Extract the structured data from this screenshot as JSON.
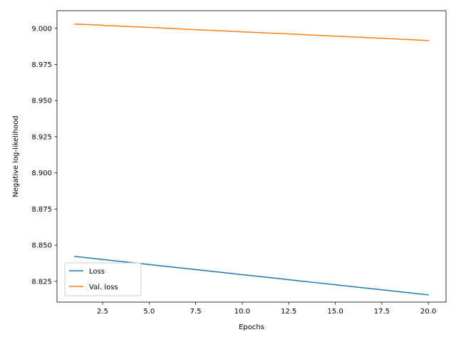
{
  "chart_data": {
    "type": "line",
    "title": "",
    "xlabel": "Epochs",
    "ylabel": "Negative log-likelihood",
    "xlim": [
      0.05,
      20.95
    ],
    "ylim": [
      8.8106,
      9.0122
    ],
    "xticks": [
      2.5,
      5.0,
      7.5,
      10.0,
      12.5,
      15.0,
      17.5,
      20.0
    ],
    "xtick_labels": [
      "2.5",
      "5.0",
      "7.5",
      "10.0",
      "12.5",
      "15.0",
      "17.5",
      "20.0"
    ],
    "yticks": [
      8.825,
      8.85,
      8.875,
      8.9,
      8.925,
      8.95,
      8.975,
      9.0
    ],
    "ytick_labels": [
      "8.825",
      "8.850",
      "8.875",
      "8.900",
      "8.925",
      "8.950",
      "8.975",
      "9.000"
    ],
    "grid": false,
    "legend_position": "lower-left",
    "series": [
      {
        "name": "Loss",
        "color": "#1f77b4",
        "x": [
          1,
          2,
          3,
          4,
          5,
          6,
          7,
          8,
          9,
          10,
          11,
          12,
          13,
          14,
          15,
          16,
          17,
          18,
          19,
          20
        ],
        "values": [
          8.8422,
          8.8408,
          8.8394,
          8.838,
          8.8366,
          8.8352,
          8.8338,
          8.8324,
          8.831,
          8.8296,
          8.8282,
          8.8268,
          8.8254,
          8.824,
          8.8226,
          8.8212,
          8.8198,
          8.8184,
          8.817,
          8.8156
        ]
      },
      {
        "name": "Val. loss",
        "color": "#ff7f0e",
        "x": [
          1,
          2,
          3,
          4,
          5,
          6,
          7,
          8,
          9,
          10,
          11,
          12,
          13,
          14,
          15,
          16,
          17,
          18,
          19,
          20
        ],
        "values": [
          9.003,
          9.0024,
          9.0018,
          9.0012,
          9.0006,
          9.0,
          8.9994,
          8.9988,
          8.9982,
          8.9976,
          8.997,
          8.9964,
          8.9958,
          8.9952,
          8.9946,
          8.994,
          8.9934,
          8.9928,
          8.9922,
          8.9916
        ]
      }
    ]
  }
}
